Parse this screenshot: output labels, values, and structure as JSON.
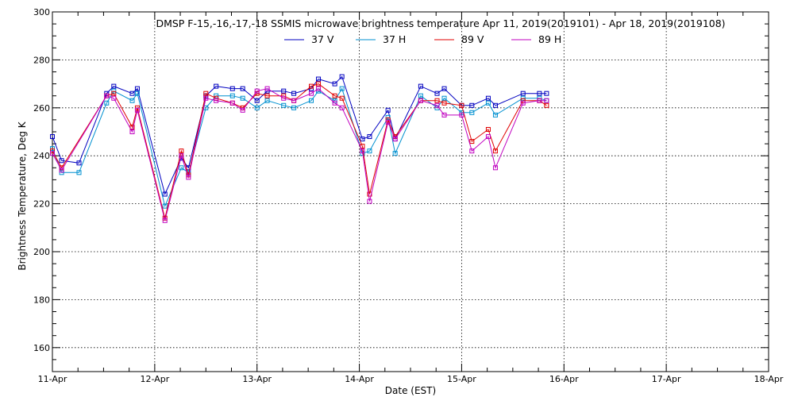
{
  "chart_data": {
    "type": "line",
    "title": "DMSP F-15,-16,-17,-18 SSMIS microwave brightness temperature Apr 11, 2019(2019101) - Apr 18, 2019(2019108)",
    "xlabel": "Date (EST)",
    "ylabel": "Brightness Temperature, Deg K",
    "xlim": [
      "11-Apr",
      "18-Apr"
    ],
    "ylim": [
      150,
      300
    ],
    "x_ticks": [
      "11-Apr",
      "12-Apr",
      "13-Apr",
      "14-Apr",
      "15-Apr",
      "16-Apr",
      "17-Apr",
      "18-Apr"
    ],
    "y_ticks": [
      160,
      180,
      200,
      220,
      240,
      260,
      280,
      300
    ],
    "grid": true,
    "legend_position": "top",
    "x_unit": "days since 11-Apr 00:00",
    "series": [
      {
        "name": "37 V",
        "color": "#0000c0",
        "points": [
          [
            0.0,
            248
          ],
          [
            0.09,
            238
          ],
          [
            0.26,
            237
          ],
          [
            0.53,
            266
          ],
          [
            0.6,
            269
          ],
          [
            0.78,
            266
          ],
          [
            0.83,
            268
          ],
          [
            1.1,
            224
          ],
          [
            1.26,
            239
          ],
          [
            1.33,
            235
          ],
          [
            1.5,
            265
          ],
          [
            1.6,
            269
          ],
          [
            1.76,
            268
          ],
          [
            1.86,
            268
          ],
          [
            2.0,
            263
          ],
          [
            2.1,
            267
          ],
          [
            2.26,
            267
          ],
          [
            2.36,
            266
          ],
          [
            2.53,
            268
          ],
          [
            2.6,
            272
          ],
          [
            2.76,
            270
          ],
          [
            2.83,
            273
          ],
          [
            3.03,
            247
          ],
          [
            3.1,
            248
          ],
          [
            3.28,
            259
          ],
          [
            3.35,
            247
          ],
          [
            3.6,
            269
          ],
          [
            3.76,
            266
          ],
          [
            3.83,
            268
          ],
          [
            4.0,
            261
          ],
          [
            4.1,
            261
          ],
          [
            4.26,
            264
          ],
          [
            4.33,
            261
          ],
          [
            4.6,
            266
          ],
          [
            4.76,
            266
          ],
          [
            4.83,
            266
          ]
        ]
      },
      {
        "name": "37 H",
        "color": "#0090d0",
        "points": [
          [
            0.0,
            243
          ],
          [
            0.09,
            233
          ],
          [
            0.26,
            233
          ],
          [
            0.53,
            262
          ],
          [
            0.6,
            267
          ],
          [
            0.78,
            263
          ],
          [
            0.83,
            266
          ],
          [
            1.1,
            219
          ],
          [
            1.26,
            235
          ],
          [
            1.33,
            233
          ],
          [
            1.5,
            260
          ],
          [
            1.6,
            265
          ],
          [
            1.76,
            265
          ],
          [
            1.86,
            264
          ],
          [
            2.0,
            260
          ],
          [
            2.1,
            263
          ],
          [
            2.26,
            261
          ],
          [
            2.36,
            260
          ],
          [
            2.53,
            263
          ],
          [
            2.6,
            267
          ],
          [
            2.76,
            263
          ],
          [
            2.83,
            268
          ],
          [
            3.03,
            241
          ],
          [
            3.1,
            242
          ],
          [
            3.28,
            256
          ],
          [
            3.35,
            241
          ],
          [
            3.6,
            265
          ],
          [
            3.76,
            260
          ],
          [
            3.83,
            264
          ],
          [
            4.0,
            258
          ],
          [
            4.1,
            258
          ],
          [
            4.26,
            262
          ],
          [
            4.33,
            257
          ],
          [
            4.6,
            264
          ],
          [
            4.76,
            264
          ],
          [
            4.83,
            263
          ]
        ]
      },
      {
        "name": "89 V",
        "color": "#e00000",
        "points": [
          [
            0.0,
            242
          ],
          [
            0.09,
            235
          ],
          [
            0.53,
            265
          ],
          [
            0.6,
            266
          ],
          [
            0.78,
            252
          ],
          [
            0.83,
            260
          ],
          [
            1.1,
            214
          ],
          [
            1.26,
            242
          ],
          [
            1.33,
            232
          ],
          [
            1.5,
            266
          ],
          [
            1.6,
            264
          ],
          [
            1.76,
            262
          ],
          [
            1.86,
            260
          ],
          [
            2.0,
            266
          ],
          [
            2.1,
            265
          ],
          [
            2.26,
            265
          ],
          [
            2.36,
            263
          ],
          [
            2.53,
            269
          ],
          [
            2.6,
            270
          ],
          [
            2.76,
            265
          ],
          [
            2.83,
            264
          ],
          [
            3.03,
            244
          ],
          [
            3.1,
            224
          ],
          [
            3.28,
            255
          ],
          [
            3.35,
            248
          ],
          [
            3.6,
            263
          ],
          [
            3.76,
            263
          ],
          [
            3.83,
            262
          ],
          [
            4.0,
            261
          ],
          [
            4.1,
            246
          ],
          [
            4.26,
            251
          ],
          [
            4.33,
            242
          ],
          [
            4.6,
            263
          ],
          [
            4.76,
            263
          ],
          [
            4.83,
            261
          ]
        ]
      },
      {
        "name": "89 H",
        "color": "#c000c0",
        "points": [
          [
            0.0,
            241
          ],
          [
            0.09,
            234
          ],
          [
            0.53,
            265
          ],
          [
            0.6,
            264
          ],
          [
            0.78,
            250
          ],
          [
            0.83,
            259
          ],
          [
            1.1,
            213
          ],
          [
            1.26,
            240
          ],
          [
            1.33,
            231
          ],
          [
            1.5,
            264
          ],
          [
            1.6,
            263
          ],
          [
            1.76,
            262
          ],
          [
            1.86,
            259
          ],
          [
            2.0,
            267
          ],
          [
            2.1,
            268
          ],
          [
            2.26,
            264
          ],
          [
            2.36,
            263
          ],
          [
            2.53,
            266
          ],
          [
            2.6,
            268
          ],
          [
            2.76,
            262
          ],
          [
            2.83,
            260
          ],
          [
            3.03,
            242
          ],
          [
            3.1,
            221
          ],
          [
            3.28,
            254
          ],
          [
            3.35,
            247
          ],
          [
            3.6,
            263
          ],
          [
            3.76,
            261
          ],
          [
            3.83,
            257
          ],
          [
            4.0,
            257
          ],
          [
            4.1,
            242
          ],
          [
            4.26,
            248
          ],
          [
            4.33,
            235
          ],
          [
            4.6,
            262
          ],
          [
            4.76,
            263
          ],
          [
            4.83,
            263
          ]
        ]
      }
    ]
  }
}
